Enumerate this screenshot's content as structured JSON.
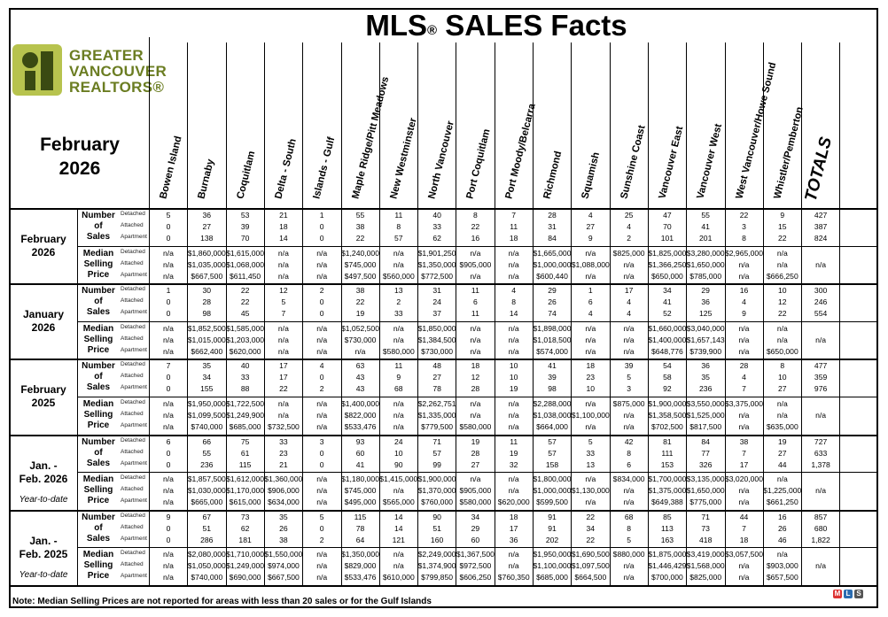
{
  "title": "MLS",
  "title_reg": "®",
  "title_rest": " SALES Facts",
  "logo": {
    "lines": [
      "GREATER",
      "VANCOUVER",
      "REALTORS®"
    ],
    "colors": {
      "logo_green": "#6b7d22",
      "logo_bar": "#b7c34e",
      "logo_dark": "#3a4a12"
    }
  },
  "period_header": {
    "line1": "February",
    "line2": "2026"
  },
  "areas": [
    "Bowen Island",
    "Burnaby",
    "Coquitlam",
    "Delta - South",
    "Islands - Gulf",
    "Maple Ridge/Pitt Meadows",
    "New Westminster",
    "North Vancouver",
    "Port Coquitlam",
    "Port Moody/Belcarra",
    "Richmond",
    "Squamish",
    "Sunshine Coast",
    "Vancouver East",
    "Vancouver West",
    "West Vancouver/Howe Sound",
    "Whistler/Pemberton",
    "TOTALS"
  ],
  "metric_labels": {
    "sales": "Number of Sales",
    "price": "Median Selling Price"
  },
  "sub_labels": [
    "Detached",
    "Attached",
    "Apartment"
  ],
  "periods": [
    {
      "label_lines": [
        "February",
        "2026"
      ],
      "ytd": "",
      "sales": [
        [
          "5",
          "36",
          "53",
          "21",
          "1",
          "55",
          "11",
          "40",
          "8",
          "7",
          "28",
          "4",
          "25",
          "47",
          "55",
          "22",
          "9",
          "427"
        ],
        [
          "0",
          "27",
          "39",
          "18",
          "0",
          "38",
          "8",
          "33",
          "22",
          "11",
          "31",
          "27",
          "4",
          "70",
          "41",
          "3",
          "15",
          "387"
        ],
        [
          "0",
          "138",
          "70",
          "14",
          "0",
          "22",
          "57",
          "62",
          "16",
          "18",
          "84",
          "9",
          "2",
          "101",
          "201",
          "8",
          "22",
          "824"
        ]
      ],
      "price": [
        [
          "n/a",
          "$1,860,000",
          "$1,615,000",
          "n/a",
          "n/a",
          "$1,240,000",
          "n/a",
          "$1,901,250",
          "n/a",
          "n/a",
          "$1,665,000",
          "n/a",
          "$825,000",
          "$1,825,000",
          "$3,280,000",
          "$2,965,000",
          "n/a",
          ""
        ],
        [
          "n/a",
          "$1,035,000",
          "$1,068,000",
          "n/a",
          "n/a",
          "$745,000",
          "n/a",
          "$1,350,000",
          "$905,000",
          "n/a",
          "$1,000,000",
          "$1,088,000",
          "n/a",
          "$1,366,250",
          "$1,650,000",
          "n/a",
          "n/a",
          "n/a"
        ],
        [
          "n/a",
          "$667,500",
          "$611,450",
          "n/a",
          "n/a",
          "$497,500",
          "$560,000",
          "$772,500",
          "n/a",
          "n/a",
          "$600,440",
          "n/a",
          "n/a",
          "$650,000",
          "$785,000",
          "n/a",
          "$666,250",
          ""
        ]
      ]
    },
    {
      "label_lines": [
        "January",
        "2026"
      ],
      "ytd": "",
      "sales": [
        [
          "1",
          "30",
          "22",
          "12",
          "2",
          "38",
          "13",
          "31",
          "11",
          "4",
          "29",
          "1",
          "17",
          "34",
          "29",
          "16",
          "10",
          "300"
        ],
        [
          "0",
          "28",
          "22",
          "5",
          "0",
          "22",
          "2",
          "24",
          "6",
          "8",
          "26",
          "6",
          "4",
          "41",
          "36",
          "4",
          "12",
          "246"
        ],
        [
          "0",
          "98",
          "45",
          "7",
          "0",
          "19",
          "33",
          "37",
          "11",
          "14",
          "74",
          "4",
          "4",
          "52",
          "125",
          "9",
          "22",
          "554"
        ]
      ],
      "price": [
        [
          "n/a",
          "$1,852,500",
          "$1,585,000",
          "n/a",
          "n/a",
          "$1,052,500",
          "n/a",
          "$1,850,000",
          "n/a",
          "n/a",
          "$1,898,000",
          "n/a",
          "n/a",
          "$1,660,000",
          "$3,040,000",
          "n/a",
          "n/a",
          ""
        ],
        [
          "n/a",
          "$1,015,000",
          "$1,203,000",
          "n/a",
          "n/a",
          "$730,000",
          "n/a",
          "$1,384,500",
          "n/a",
          "n/a",
          "$1,018,500",
          "n/a",
          "n/a",
          "$1,400,000",
          "$1,657,143",
          "n/a",
          "n/a",
          "n/a"
        ],
        [
          "n/a",
          "$662,400",
          "$620,000",
          "n/a",
          "n/a",
          "n/a",
          "$580,000",
          "$730,000",
          "n/a",
          "n/a",
          "$574,000",
          "n/a",
          "n/a",
          "$648,776",
          "$739,900",
          "n/a",
          "$650,000",
          ""
        ]
      ]
    },
    {
      "label_lines": [
        "February",
        "2025"
      ],
      "ytd": "",
      "sales": [
        [
          "7",
          "35",
          "40",
          "17",
          "4",
          "63",
          "11",
          "48",
          "18",
          "10",
          "41",
          "18",
          "39",
          "54",
          "36",
          "28",
          "8",
          "477"
        ],
        [
          "0",
          "34",
          "33",
          "17",
          "0",
          "43",
          "9",
          "27",
          "12",
          "10",
          "39",
          "23",
          "5",
          "58",
          "35",
          "4",
          "10",
          "359"
        ],
        [
          "0",
          "155",
          "88",
          "22",
          "2",
          "43",
          "68",
          "78",
          "28",
          "19",
          "98",
          "10",
          "3",
          "92",
          "236",
          "7",
          "27",
          "976"
        ]
      ],
      "price": [
        [
          "n/a",
          "$1,950,000",
          "$1,722,500",
          "n/a",
          "n/a",
          "$1,400,000",
          "n/a",
          "$2,262,751",
          "n/a",
          "n/a",
          "$2,288,000",
          "n/a",
          "$875,000",
          "$1,900,000",
          "$3,550,000",
          "$3,375,000",
          "n/a",
          ""
        ],
        [
          "n/a",
          "$1,099,500",
          "$1,249,900",
          "n/a",
          "n/a",
          "$822,000",
          "n/a",
          "$1,335,000",
          "n/a",
          "n/a",
          "$1,038,000",
          "$1,100,000",
          "n/a",
          "$1,358,500",
          "$1,525,000",
          "n/a",
          "n/a",
          "n/a"
        ],
        [
          "n/a",
          "$740,000",
          "$685,000",
          "$732,500",
          "n/a",
          "$533,476",
          "n/a",
          "$779,500",
          "$580,000",
          "n/a",
          "$664,000",
          "n/a",
          "n/a",
          "$702,500",
          "$817,500",
          "n/a",
          "$635,000",
          ""
        ]
      ]
    },
    {
      "label_lines": [
        "Jan. -",
        "Feb. 2026"
      ],
      "ytd": "Year-to-date",
      "sales": [
        [
          "6",
          "66",
          "75",
          "33",
          "3",
          "93",
          "24",
          "71",
          "19",
          "11",
          "57",
          "5",
          "42",
          "81",
          "84",
          "38",
          "19",
          "727"
        ],
        [
          "0",
          "55",
          "61",
          "23",
          "0",
          "60",
          "10",
          "57",
          "28",
          "19",
          "57",
          "33",
          "8",
          "111",
          "77",
          "7",
          "27",
          "633"
        ],
        [
          "0",
          "236",
          "115",
          "21",
          "0",
          "41",
          "90",
          "99",
          "27",
          "32",
          "158",
          "13",
          "6",
          "153",
          "326",
          "17",
          "44",
          "1,378"
        ]
      ],
      "price": [
        [
          "n/a",
          "$1,857,500",
          "$1,612,000",
          "$1,360,000",
          "n/a",
          "$1,180,000",
          "$1,415,000",
          "$1,900,000",
          "n/a",
          "n/a",
          "$1,800,000",
          "n/a",
          "$834,000",
          "$1,700,000",
          "$3,135,000",
          "$3,020,000",
          "n/a",
          ""
        ],
        [
          "n/a",
          "$1,030,000",
          "$1,170,000",
          "$906,000",
          "n/a",
          "$745,000",
          "n/a",
          "$1,370,000",
          "$905,000",
          "n/a",
          "$1,000,000",
          "$1,130,000",
          "n/a",
          "$1,375,000",
          "$1,650,000",
          "n/a",
          "$1,225,000",
          "n/a"
        ],
        [
          "n/a",
          "$665,000",
          "$615,000",
          "$634,000",
          "n/a",
          "$495,000",
          "$565,000",
          "$760,000",
          "$580,000",
          "$620,000",
          "$599,500",
          "n/a",
          "n/a",
          "$649,388",
          "$775,000",
          "n/a",
          "$661,250",
          ""
        ]
      ]
    },
    {
      "label_lines": [
        "Jan. -",
        "Feb. 2025"
      ],
      "ytd": "Year-to-date",
      "sales": [
        [
          "9",
          "67",
          "73",
          "35",
          "5",
          "115",
          "14",
          "90",
          "34",
          "18",
          "91",
          "22",
          "68",
          "85",
          "71",
          "44",
          "16",
          "857"
        ],
        [
          "0",
          "51",
          "62",
          "26",
          "0",
          "78",
          "14",
          "51",
          "29",
          "17",
          "91",
          "34",
          "8",
          "113",
          "73",
          "7",
          "26",
          "680"
        ],
        [
          "0",
          "286",
          "181",
          "38",
          "2",
          "64",
          "121",
          "160",
          "60",
          "36",
          "202",
          "22",
          "5",
          "163",
          "418",
          "18",
          "46",
          "1,822"
        ]
      ],
      "price": [
        [
          "n/a",
          "$2,080,000",
          "$1,710,000",
          "$1,550,000",
          "n/a",
          "$1,350,000",
          "n/a",
          "$2,249,000",
          "$1,367,500",
          "n/a",
          "$1,950,000",
          "$1,690,500",
          "$880,000",
          "$1,875,000",
          "$3,419,000",
          "$3,057,500",
          "n/a",
          ""
        ],
        [
          "n/a",
          "$1,050,000",
          "$1,249,000",
          "$974,000",
          "n/a",
          "$829,000",
          "n/a",
          "$1,374,900",
          "$972,500",
          "n/a",
          "$1,100,000",
          "$1,097,500",
          "n/a",
          "$1,446,429",
          "$1,568,000",
          "n/a",
          "$903,000",
          "n/a"
        ],
        [
          "n/a",
          "$740,000",
          "$690,000",
          "$667,500",
          "n/a",
          "$533,476",
          "$610,000",
          "$799,850",
          "$606,250",
          "$760,350",
          "$685,000",
          "$664,500",
          "n/a",
          "$700,000",
          "$825,000",
          "n/a",
          "$657,500",
          ""
        ]
      ]
    }
  ],
  "footnote": "Note: Median Selling Prices are not reported for areas with less than 20 sales or  for the Gulf Islands",
  "corner_logo": [
    "M",
    "L",
    "S"
  ]
}
